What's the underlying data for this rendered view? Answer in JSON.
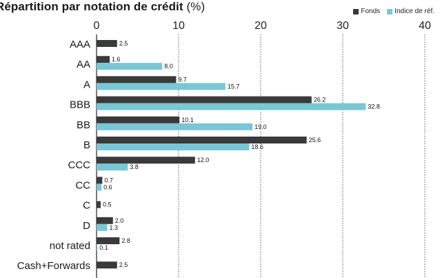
{
  "title": "Répartition par notation de crédit",
  "title_unit": "(%)",
  "colors": {
    "fonds": "#3a3a3a",
    "indice": "#79c7d6",
    "grid": "#555555",
    "axis": "#222222"
  },
  "chart_data": {
    "type": "bar",
    "orientation": "horizontal",
    "title": "Répartition par notation de crédit (%)",
    "categories": [
      "AAA",
      "AA",
      "A",
      "BBB",
      "BB",
      "B",
      "CCC",
      "CC",
      "C",
      "D",
      "not rated",
      "Cash+Forwards"
    ],
    "series": [
      {
        "name": "Fonds",
        "values": [
          2.5,
          1.6,
          9.7,
          26.2,
          10.1,
          25.6,
          12.0,
          0.7,
          0.5,
          2.0,
          2.8,
          2.5
        ]
      },
      {
        "name": "Indice de réf.",
        "values": [
          null,
          8.0,
          15.7,
          32.8,
          19.0,
          18.6,
          3.8,
          0.6,
          null,
          1.3,
          0.1,
          null
        ]
      }
    ],
    "xlim": [
      0,
      40
    ],
    "xticks": [
      0,
      10,
      20,
      30,
      40
    ],
    "grid": "vertical dotted",
    "legend": "top-right",
    "data_labels": true
  }
}
